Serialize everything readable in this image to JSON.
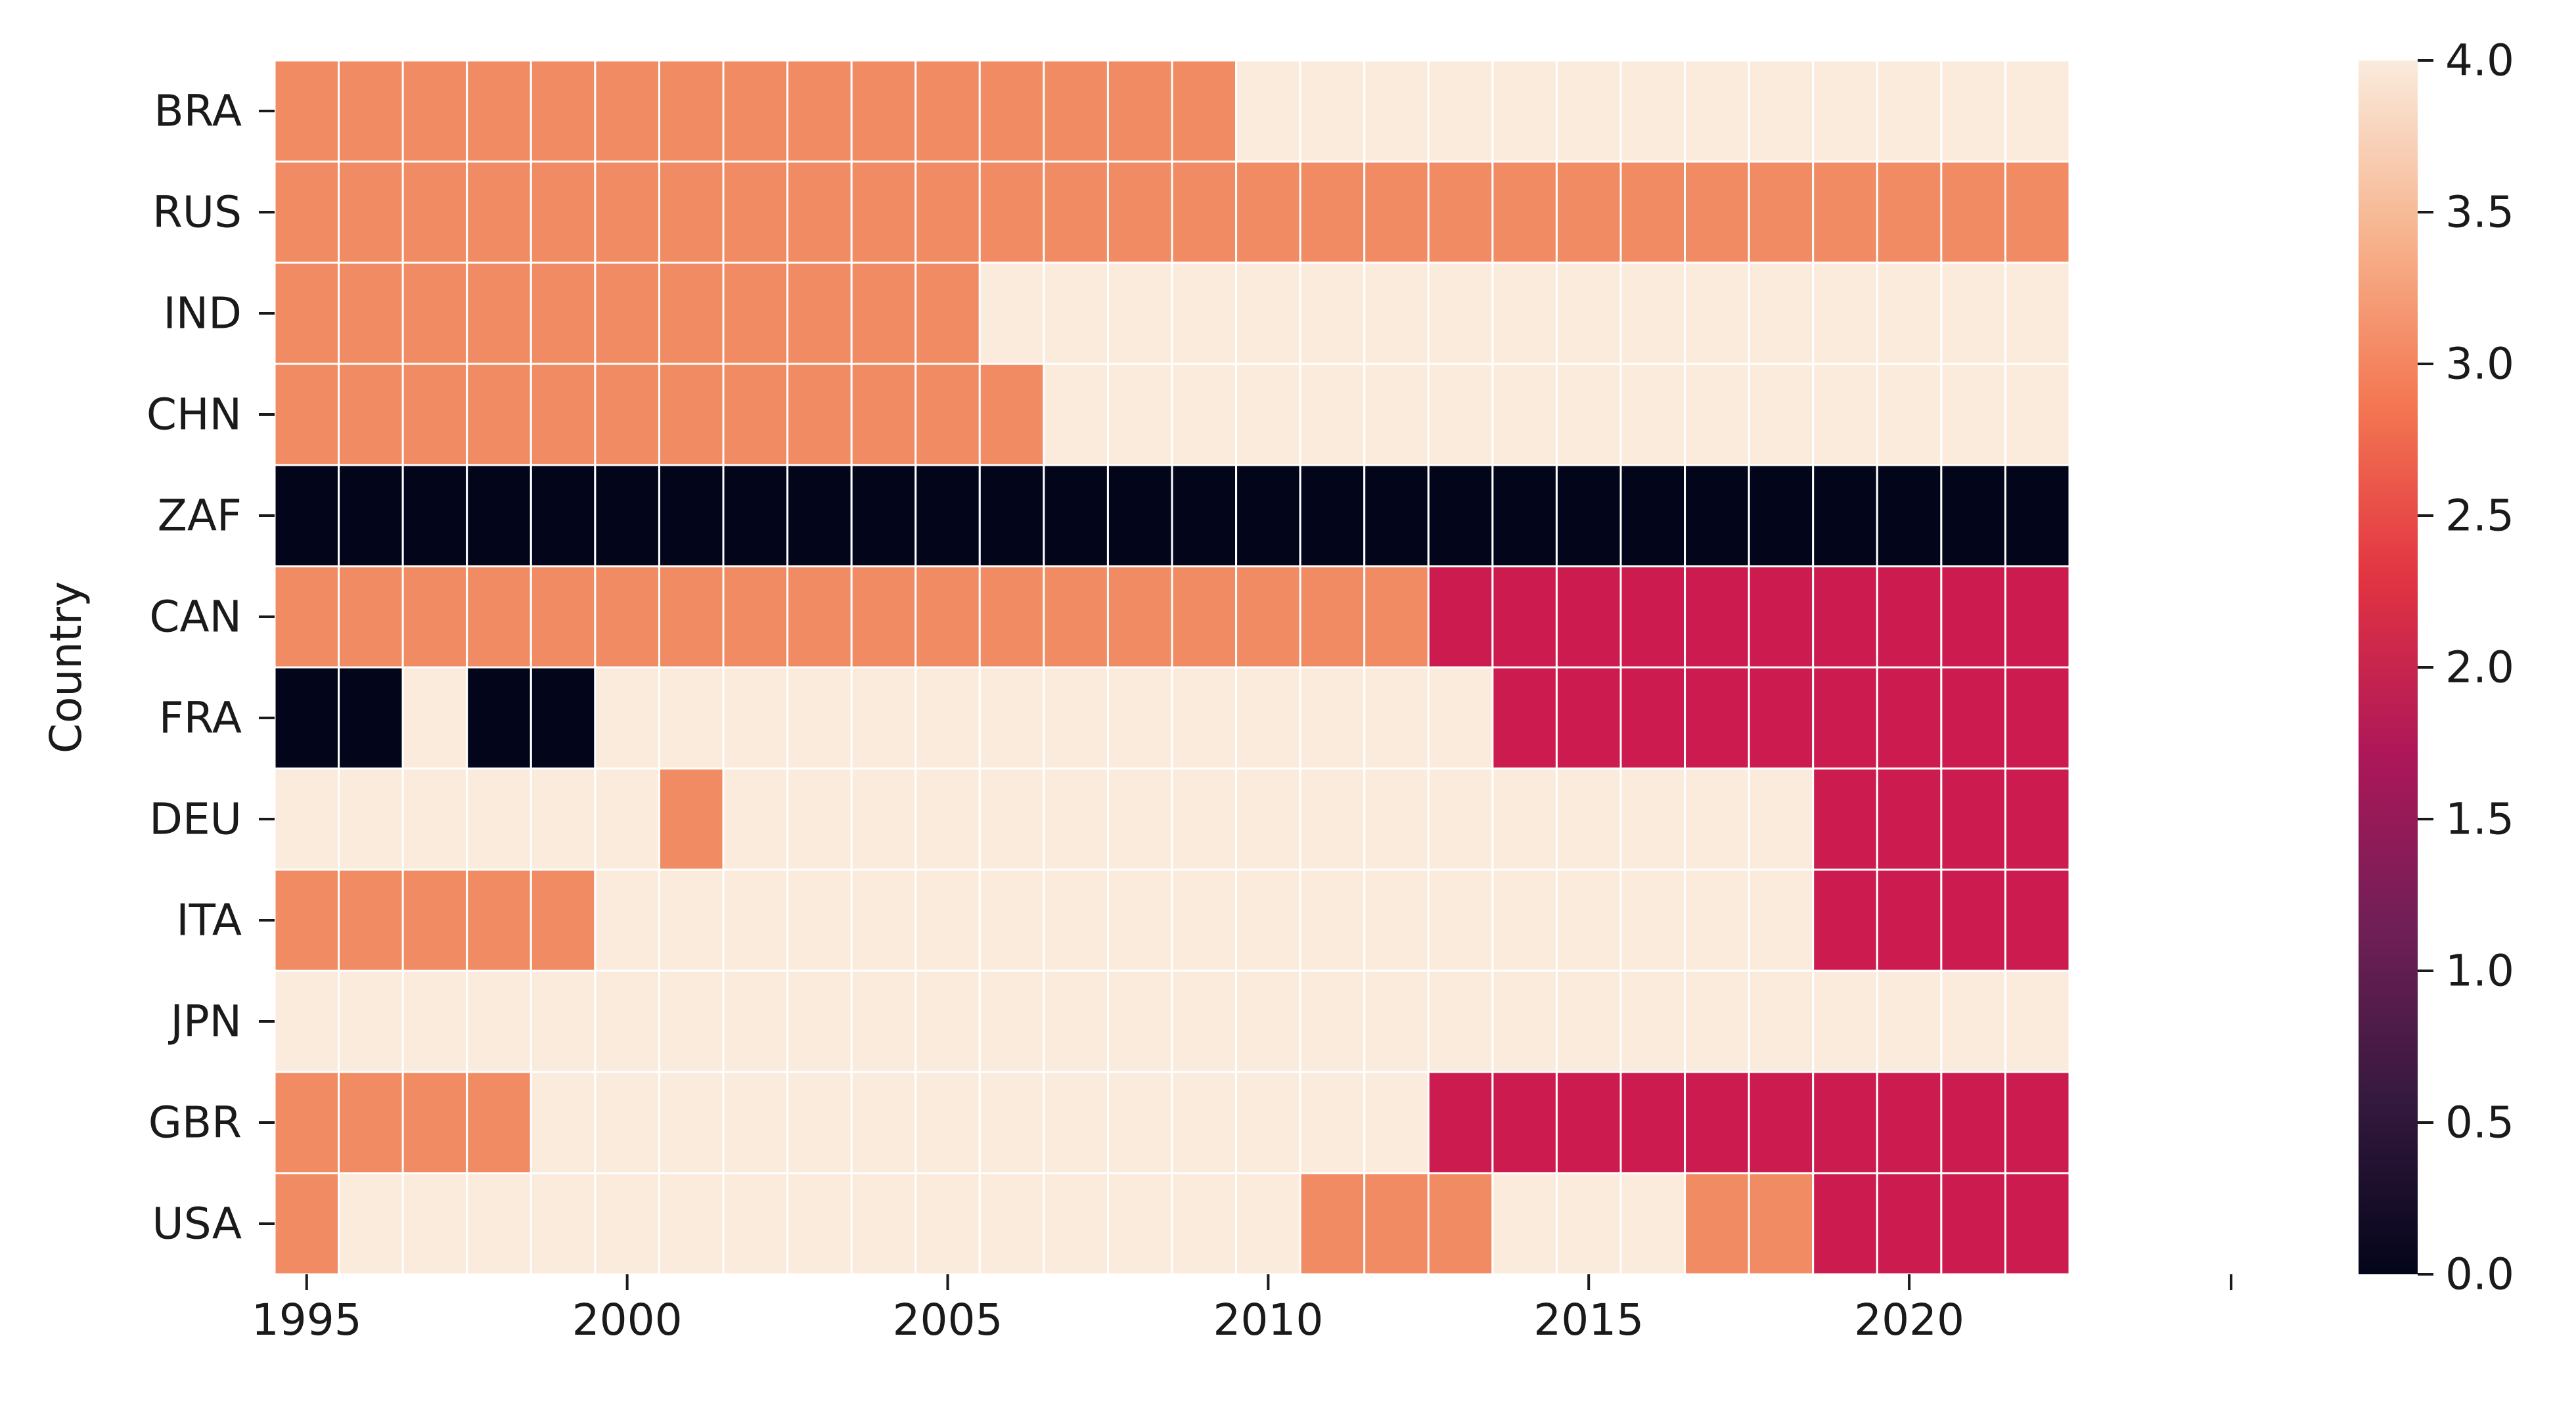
{
  "chart_data": {
    "type": "heatmap",
    "title": "",
    "xlabel": "",
    "ylabel": "Country",
    "x": [
      1995,
      1996,
      1997,
      1998,
      1999,
      2000,
      2001,
      2002,
      2003,
      2004,
      2005,
      2006,
      2007,
      2008,
      2009,
      2010,
      2011,
      2012,
      2013,
      2014,
      2015,
      2016,
      2017,
      2018,
      2019,
      2020,
      2021,
      2022
    ],
    "x_tick_labels": [
      "1995",
      "2000",
      "2005",
      "2010",
      "2015",
      "2020"
    ],
    "y": [
      "BRA",
      "RUS",
      "IND",
      "CHN",
      "ZAF",
      "CAN",
      "FRA",
      "DEU",
      "ITA",
      "JPN",
      "GBR",
      "USA"
    ],
    "values": [
      [
        3,
        3,
        3,
        3,
        3,
        3,
        3,
        3,
        3,
        3,
        3,
        3,
        3,
        3,
        3,
        4,
        4,
        4,
        4,
        4,
        4,
        4,
        4,
        4,
        4,
        4,
        4,
        4
      ],
      [
        3,
        3,
        3,
        3,
        3,
        3,
        3,
        3,
        3,
        3,
        3,
        3,
        3,
        3,
        3,
        3,
        3,
        3,
        3,
        3,
        3,
        3,
        3,
        3,
        3,
        3,
        3,
        3
      ],
      [
        3,
        3,
        3,
        3,
        3,
        3,
        3,
        3,
        3,
        3,
        3,
        4,
        4,
        4,
        4,
        4,
        4,
        4,
        4,
        4,
        4,
        4,
        4,
        4,
        4,
        4,
        4,
        4
      ],
      [
        3,
        3,
        3,
        3,
        3,
        3,
        3,
        3,
        3,
        3,
        3,
        3,
        4,
        4,
        4,
        4,
        4,
        4,
        4,
        4,
        4,
        4,
        4,
        4,
        4,
        4,
        4,
        4
      ],
      [
        0,
        0,
        0,
        0,
        0,
        0,
        0,
        0,
        0,
        0,
        0,
        0,
        0,
        0,
        0,
        0,
        0,
        0,
        0,
        0,
        0,
        0,
        0,
        0,
        0,
        0,
        0,
        0
      ],
      [
        3,
        3,
        3,
        3,
        3,
        3,
        3,
        3,
        3,
        3,
        3,
        3,
        3,
        3,
        3,
        3,
        3,
        3,
        2,
        2,
        2,
        2,
        2,
        2,
        2,
        2,
        2,
        2
      ],
      [
        0,
        0,
        4,
        0,
        0,
        4,
        4,
        4,
        4,
        4,
        4,
        4,
        4,
        4,
        4,
        4,
        4,
        4,
        4,
        2,
        2,
        2,
        2,
        2,
        2,
        2,
        2,
        2
      ],
      [
        4,
        4,
        4,
        4,
        4,
        4,
        3,
        4,
        4,
        4,
        4,
        4,
        4,
        4,
        4,
        4,
        4,
        4,
        4,
        4,
        4,
        4,
        4,
        4,
        2,
        2,
        2,
        2
      ],
      [
        3,
        3,
        3,
        3,
        3,
        4,
        4,
        4,
        4,
        4,
        4,
        4,
        4,
        4,
        4,
        4,
        4,
        4,
        4,
        4,
        4,
        4,
        4,
        4,
        2,
        2,
        2,
        2
      ],
      [
        4,
        4,
        4,
        4,
        4,
        4,
        4,
        4,
        4,
        4,
        4,
        4,
        4,
        4,
        4,
        4,
        4,
        4,
        4,
        4,
        4,
        4,
        4,
        4,
        4,
        4,
        4,
        4
      ],
      [
        3,
        3,
        3,
        3,
        4,
        4,
        4,
        4,
        4,
        4,
        4,
        4,
        4,
        4,
        4,
        4,
        4,
        4,
        2,
        2,
        2,
        2,
        2,
        2,
        2,
        2,
        2,
        2
      ],
      [
        3,
        4,
        4,
        4,
        4,
        4,
        4,
        4,
        4,
        4,
        4,
        4,
        4,
        4,
        4,
        4,
        3,
        3,
        3,
        4,
        4,
        4,
        3,
        3,
        2,
        2,
        2,
        2
      ]
    ],
    "colorbar": {
      "min": 0,
      "max": 4,
      "ticks": [
        "0.0",
        "0.5",
        "1.0",
        "1.5",
        "2.0",
        "2.5",
        "3.0",
        "3.5",
        "4.0"
      ]
    },
    "colors": {
      "0": "#03051a",
      "2": "#cb1b4f",
      "3": "#f08b63",
      "4": "#faebdd",
      "gridline": "#ffffff"
    },
    "colormap_stops": [
      "#faebdd",
      "#f6b48e",
      "#f37651",
      "#e13342",
      "#ad1759",
      "#701f57",
      "#35193e",
      "#03051a"
    ]
  }
}
